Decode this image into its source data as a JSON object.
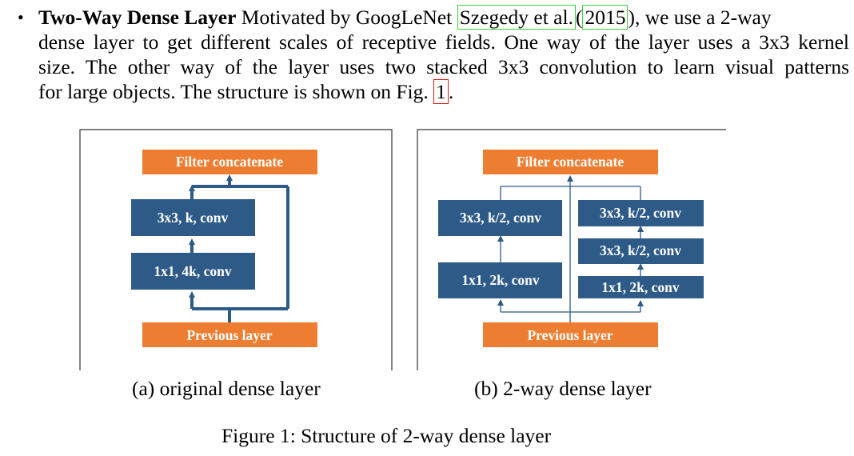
{
  "paragraph": {
    "bullet": "•",
    "term": "Two-Way Dense Layer",
    "line1_a": "Motivated by GoogLeNet",
    "cite_author": "Szegedy et al.",
    "cite_paren_open": "(",
    "cite_year": "2015",
    "line1_b": "), we use a 2-way",
    "line2": "dense layer to get different scales of receptive fields. One way of the layer uses a 3x3 kernel",
    "line3": "size. The other way of the layer uses two stacked 3x3 convolution to learn visual patterns",
    "line4_a": "for large objects. The structure is shown on Fig.",
    "fig_ref": "1",
    "line4_b": "."
  },
  "figure_a": {
    "top": "Filter concatenate",
    "conv3": "3x3, k, conv",
    "conv1": "1x1, 4k, conv",
    "bottom": "Previous layer",
    "caption": "(a) original dense layer"
  },
  "figure_b": {
    "top": "Filter concatenate",
    "left_conv3": "3x3, k/2, conv",
    "left_conv1": "1x1, 2k, conv",
    "right_conv3_top": "3x3, k/2, conv",
    "right_conv3_mid": "3x3, k/2, conv",
    "right_conv1": "1x1, 2k, conv",
    "bottom": "Previous layer",
    "caption": "(b) 2-way dense layer"
  },
  "figure_caption": "Figure 1: Structure of 2-way dense layer",
  "colors": {
    "orange": "#ED7D31",
    "blue": "#2E5A88",
    "line": "#2E5A88"
  }
}
